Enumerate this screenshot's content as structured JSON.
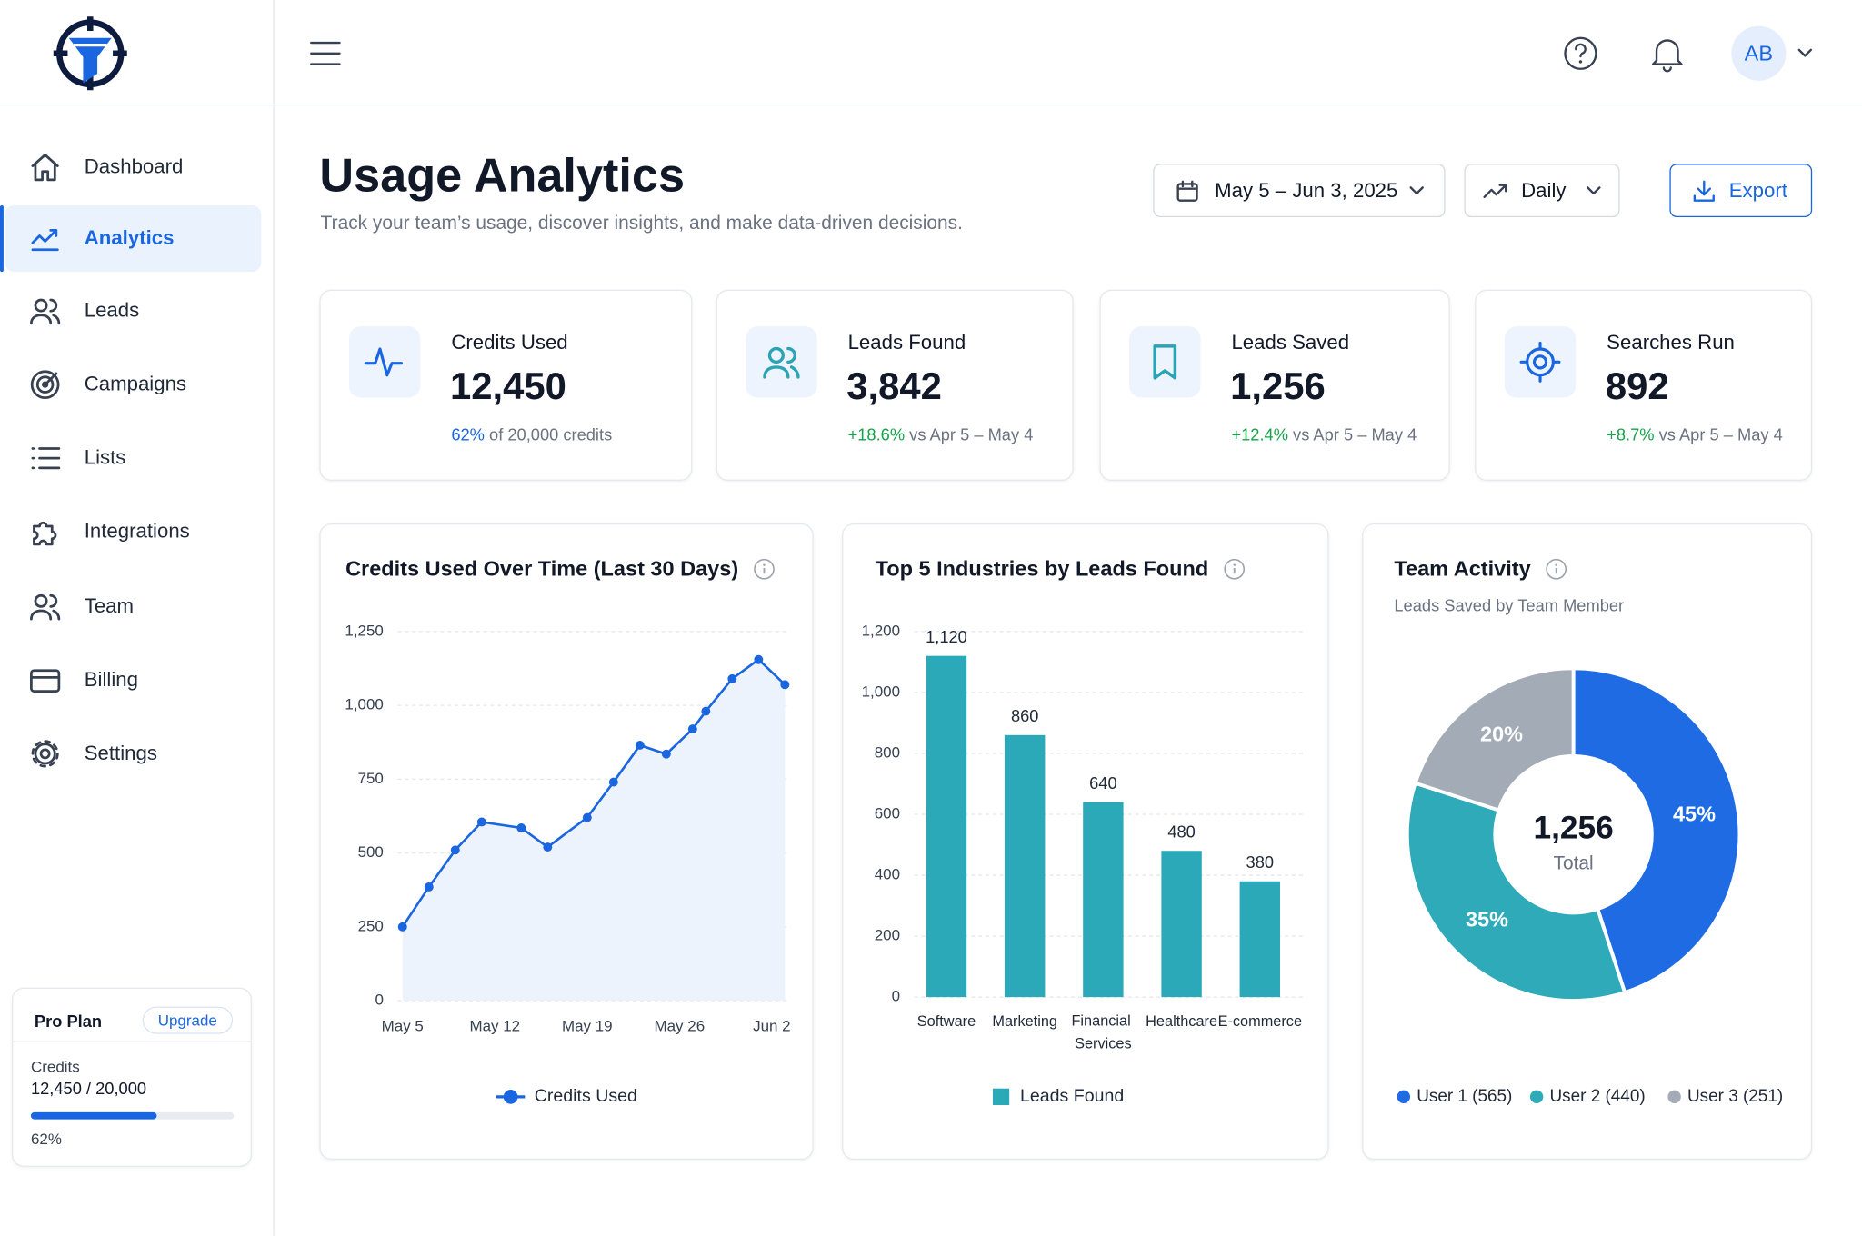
{
  "header": {
    "avatar_initials": "AB"
  },
  "sidebar": {
    "nav": [
      "Dashboard",
      "Analytics",
      "Leads",
      "Campaigns",
      "Lists",
      "Integrations",
      "Team",
      "Billing",
      "Settings"
    ]
  },
  "plan": {
    "name": "Pro Plan",
    "action": "Upgrade",
    "credits_label": "Credits",
    "credits": "12,450 / 20,000",
    "progress": {
      "value": 62,
      "label": "62%"
    }
  },
  "page": {
    "title": "Usage Analytics",
    "subtitle": "Track your team’s usage, discover insights, and make data-driven decisions.",
    "date_range": "May 5 – Jun 3, 2025",
    "interval": "Daily",
    "export": "Export"
  },
  "stats": [
    {
      "label": "Credits Used",
      "value": "12,450",
      "highlight": "62%",
      "note": "of 20,000 credits"
    },
    {
      "label": "Leads Found",
      "value": "3,842",
      "highlight": "+18.6%",
      "note": "vs Apr 5 – May 4"
    },
    {
      "label": "Leads Saved",
      "value": "1,256",
      "highlight": "+12.4%",
      "note": "vs Apr 5 – May 4"
    },
    {
      "label": "Searches Run",
      "value": "892",
      "highlight": "+8.7%",
      "note": "vs Apr 5 – May 4"
    }
  ],
  "chart_data": [
    {
      "type": "line",
      "title": "Credits Used Over Time (Last 30 Days)",
      "x": [
        0,
        2,
        4,
        6,
        9,
        11,
        14,
        16,
        18,
        20,
        22,
        23,
        25,
        27,
        29
      ],
      "xlim": [
        0,
        29
      ],
      "xticks": [
        {
          "value": 0,
          "label": "May 5"
        },
        {
          "value": 7,
          "label": "May 12"
        },
        {
          "value": 14,
          "label": "May 19"
        },
        {
          "value": 21,
          "label": "May 26"
        },
        {
          "value": 28,
          "label": "Jun 2"
        }
      ],
      "ylim": [
        0,
        1250
      ],
      "yticks": [
        0,
        250,
        500,
        750,
        {
          "value": 1000,
          "label": "1,000"
        },
        {
          "value": 1250,
          "label": "1,250"
        }
      ],
      "grid": true,
      "series": [
        {
          "name": "Credits Used",
          "color": "#1a66e0",
          "values": [
            250,
            385,
            510,
            605,
            585,
            520,
            620,
            740,
            865,
            835,
            920,
            980,
            1090,
            1155,
            1070
          ]
        }
      ]
    },
    {
      "type": "bar",
      "title": "Top 5 Industries by Leads Found",
      "categories": [
        "Software",
        "Marketing",
        "Financial Services",
        "Healthcare",
        "E-commerce"
      ],
      "ylim": [
        0,
        1200
      ],
      "yticks": [
        0,
        200,
        400,
        600,
        800,
        {
          "value": 1000,
          "label": "1,000"
        },
        {
          "value": 1200,
          "label": "1,200"
        }
      ],
      "grid": true,
      "series": [
        {
          "name": "Leads Found",
          "color": "#2ba9b9",
          "values": [
            1120,
            860,
            640,
            480,
            380
          ],
          "value_labels": [
            "1,120",
            "860",
            "640",
            "480",
            "380"
          ]
        }
      ]
    },
    {
      "type": "pie",
      "title": "Team Activity",
      "subtitle": "Leads Saved by Team Member",
      "center_value": "1,256",
      "center_label": "Total",
      "categories": [
        "User 1 (565)",
        "User 2 (440)",
        "User 3 (251)"
      ],
      "values": [
        45,
        35,
        20
      ],
      "value_labels": [
        "45%",
        "35%",
        "20%"
      ],
      "colors": [
        "#1f6be3",
        "#2eaab9",
        "#a3abb6"
      ]
    }
  ]
}
